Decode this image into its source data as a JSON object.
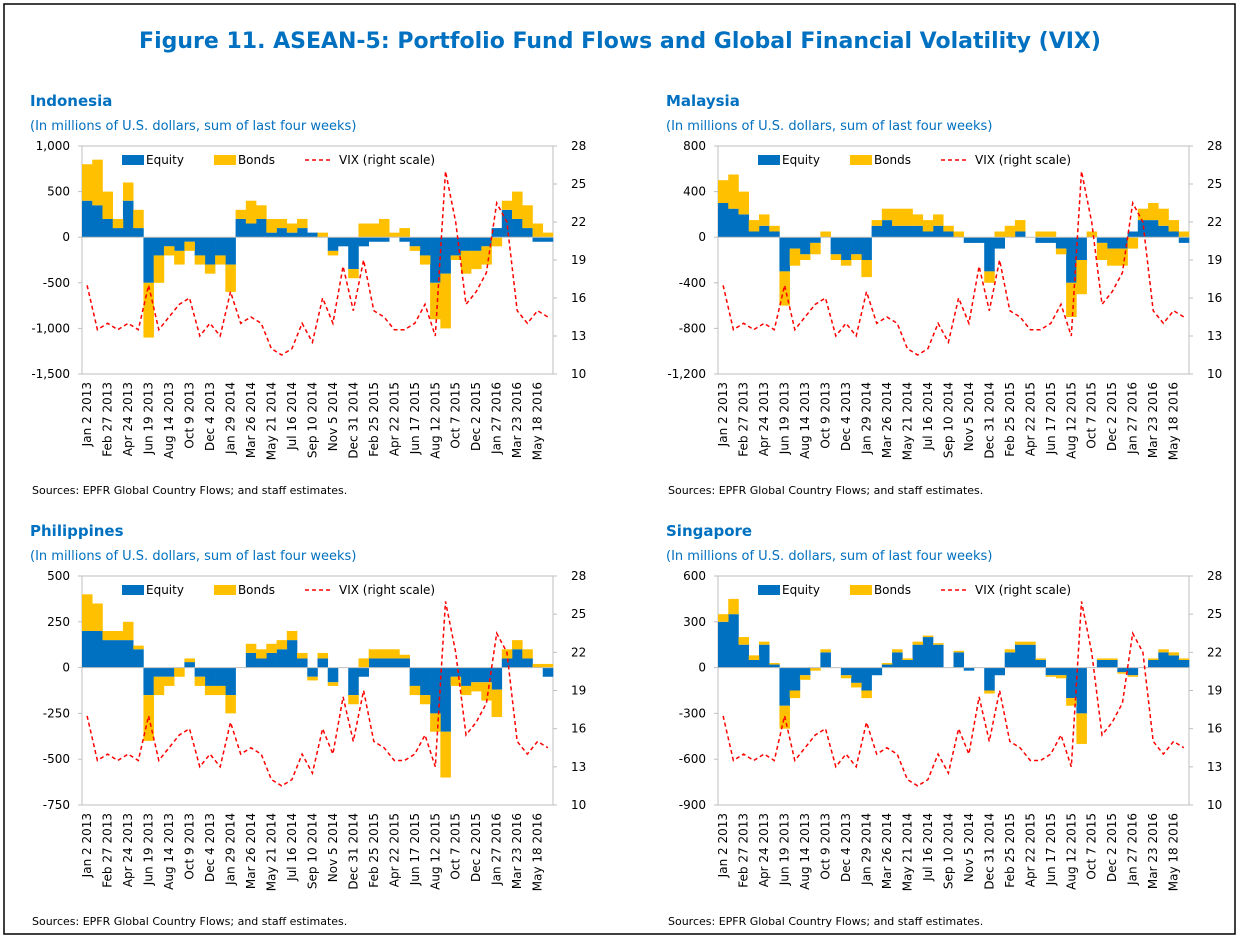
{
  "title": "Figure 11. ASEAN-5: Portfolio Fund Flows and Global Financial Volatility (VIX)",
  "chart_data": [
    {
      "type": "combo",
      "title": "Indonesia",
      "subtitle": "(In millions of U.S. dollars, sum of last four weeks)",
      "source": "Sources: EPFR Global Country Flows; and staff estimates.",
      "categories": [
        "Jan 2 2013",
        null,
        "Feb 27 2013",
        null,
        "Apr 24 2013",
        null,
        "Jun 19 2013",
        null,
        "Aug 14 2013",
        null,
        "Oct 9 2013",
        null,
        "Dec 4 2013",
        null,
        "Jan 29 2014",
        null,
        "Mar 26 2014",
        null,
        "May 21 2014",
        null,
        "Jul 16 2014",
        null,
        "Sep 10 2014",
        null,
        "Nov 5 2014",
        null,
        "Dec 31 2014",
        null,
        "Feb 25 2015",
        null,
        "Apr 22 2015",
        null,
        "Jun 17 2015",
        null,
        "Aug 12 2015",
        null,
        "Oct 7 2015",
        null,
        "Dec 2 2015",
        null,
        "Jan 27 2016",
        null,
        "Mar 23 2016",
        null,
        "May 18 2016",
        null
      ],
      "series": [
        {
          "name": "Equity",
          "color": "#0070c0",
          "values": [
            400,
            350,
            200,
            100,
            400,
            100,
            -500,
            -200,
            -100,
            -150,
            -50,
            -200,
            -300,
            -200,
            -300,
            200,
            150,
            200,
            50,
            100,
            50,
            100,
            50,
            0,
            -150,
            -100,
            -350,
            -100,
            -50,
            -50,
            0,
            -50,
            -100,
            -200,
            -500,
            -400,
            -200,
            -150,
            -150,
            -100,
            100,
            300,
            200,
            100,
            -50,
            -50
          ]
        },
        {
          "name": "Bonds",
          "color": "#ffc000",
          "values": [
            400,
            500,
            300,
            100,
            200,
            200,
            -600,
            -300,
            -100,
            -150,
            -100,
            -100,
            -100,
            -100,
            -300,
            100,
            250,
            150,
            150,
            100,
            100,
            100,
            0,
            50,
            -50,
            0,
            -100,
            150,
            150,
            200,
            50,
            100,
            -50,
            -100,
            -400,
            -600,
            -50,
            -250,
            -200,
            -200,
            -100,
            100,
            300,
            250,
            150,
            50
          ]
        },
        {
          "name": "VIX (right scale)",
          "color": "#ff0000",
          "axis": "y2",
          "values": [
            17,
            13.5,
            14,
            13.5,
            14,
            13.5,
            17,
            13.5,
            14.5,
            15.5,
            16,
            13,
            14,
            13,
            16.5,
            14,
            14.5,
            14,
            12,
            11.5,
            12,
            14,
            12.5,
            16,
            14,
            18.5,
            15,
            19,
            15,
            14.5,
            13.5,
            13.5,
            14,
            15.5,
            13,
            26,
            22,
            15.5,
            16.5,
            18,
            23.5,
            22,
            15,
            14,
            15,
            14.5
          ]
        }
      ],
      "ylim": [
        -1500,
        1000
      ],
      "yticks": [
        {
          "value": -1500,
          "label": "-1,500"
        },
        {
          "value": -1000,
          "label": "-1,000"
        },
        -500,
        0,
        500,
        {
          "value": 1000,
          "label": "1,000"
        }
      ],
      "y2lim": [
        10,
        28
      ],
      "y2ticks": [
        10,
        13,
        16,
        19,
        22,
        25,
        28
      ]
    },
    {
      "type": "combo",
      "title": "Malaysia",
      "subtitle": "(In millions of U.S. dollars, sum of last four weeks)",
      "source": "Sources: EPFR Global Country Flows; and staff estimates.",
      "categories": [
        "Jan 2 2013",
        null,
        "Feb 27 2013",
        null,
        "Apr 24 2013",
        null,
        "Jun 19 2013",
        null,
        "Aug 14 2013",
        null,
        "Oct 9 2013",
        null,
        "Dec 4 2013",
        null,
        "Jan 29 2014",
        null,
        "Mar 26 2014",
        null,
        "May 21 2014",
        null,
        "Jul 16 2014",
        null,
        "Sep 10 2014",
        null,
        "Nov 5 2014",
        null,
        "Dec 31 2014",
        null,
        "Feb 25 2015",
        null,
        "Apr 22 2015",
        null,
        "Jun 17 2015",
        null,
        "Aug 12 2015",
        null,
        "Oct 7 2015",
        null,
        "Dec 2 2015",
        null,
        "Jan 27 2016",
        null,
        "Mar 23 2016",
        null,
        "May 18 2016",
        null
      ],
      "series": [
        {
          "name": "Equity",
          "color": "#0070c0",
          "values": [
            300,
            250,
            200,
            50,
            100,
            50,
            -300,
            -100,
            -150,
            -50,
            0,
            -150,
            -200,
            -150,
            -200,
            100,
            150,
            100,
            100,
            100,
            50,
            100,
            50,
            0,
            -50,
            -50,
            -300,
            -100,
            0,
            50,
            0,
            -50,
            -50,
            -100,
            -400,
            -200,
            0,
            -50,
            -100,
            -100,
            50,
            150,
            150,
            100,
            50,
            -50
          ]
        },
        {
          "name": "Bonds",
          "color": "#ffc000",
          "values": [
            200,
            300,
            200,
            100,
            100,
            50,
            -300,
            -150,
            -50,
            -100,
            50,
            -50,
            -50,
            -50,
            -150,
            50,
            100,
            150,
            150,
            100,
            100,
            100,
            50,
            50,
            0,
            0,
            -100,
            50,
            100,
            100,
            0,
            50,
            50,
            -50,
            -300,
            -300,
            50,
            -150,
            -150,
            -150,
            -100,
            100,
            150,
            150,
            100,
            50
          ]
        },
        {
          "name": "VIX (right scale)",
          "color": "#ff0000",
          "axis": "y2",
          "values": [
            17,
            13.5,
            14,
            13.5,
            14,
            13.5,
            17,
            13.5,
            14.5,
            15.5,
            16,
            13,
            14,
            13,
            16.5,
            14,
            14.5,
            14,
            12,
            11.5,
            12,
            14,
            12.5,
            16,
            14,
            18.5,
            15,
            19,
            15,
            14.5,
            13.5,
            13.5,
            14,
            15.5,
            13,
            26,
            22,
            15.5,
            16.5,
            18,
            23.5,
            22,
            15,
            14,
            15,
            14.5
          ]
        }
      ],
      "ylim": [
        -1200,
        800
      ],
      "yticks": [
        {
          "value": -1200,
          "label": "-1,200"
        },
        -800,
        -400,
        0,
        400,
        800
      ],
      "y2lim": [
        10,
        28
      ],
      "y2ticks": [
        10,
        13,
        16,
        19,
        22,
        25,
        28
      ]
    },
    {
      "type": "combo",
      "title": "Philippines",
      "subtitle": "(In millions of U.S. dollars, sum of last four weeks)",
      "source": "Sources: EPFR Global Country Flows; and staff estimates.",
      "categories": [
        "Jan 2 2013",
        null,
        "Feb 27 2013",
        null,
        "Apr 24 2013",
        null,
        "Jun 19 2013",
        null,
        "Aug 14 2013",
        null,
        "Oct 9 2013",
        null,
        "Dec 4 2013",
        null,
        "Jan 29 2014",
        null,
        "Mar 26 2014",
        null,
        "May 21 2014",
        null,
        "Jul 16 2014",
        null,
        "Sep 10 2014",
        null,
        "Nov 5 2014",
        null,
        "Dec 31 2014",
        null,
        "Feb 25 2015",
        null,
        "Apr 22 2015",
        null,
        "Jun 17 2015",
        null,
        "Aug 12 2015",
        null,
        "Oct 7 2015",
        null,
        "Dec 2 2015",
        null,
        "Jan 27 2016",
        null,
        "Mar 23 2016",
        null,
        "May 18 2016",
        null
      ],
      "series": [
        {
          "name": "Equity",
          "color": "#0070c0",
          "values": [
            200,
            200,
            150,
            150,
            150,
            100,
            -150,
            -50,
            -50,
            0,
            30,
            -50,
            -100,
            -100,
            -150,
            0,
            80,
            50,
            80,
            100,
            150,
            50,
            -50,
            50,
            -80,
            0,
            -150,
            -50,
            50,
            50,
            50,
            50,
            -100,
            -150,
            -250,
            -350,
            -50,
            -100,
            -80,
            -80,
            -120,
            50,
            100,
            50,
            0,
            -50
          ]
        },
        {
          "name": "Bonds",
          "color": "#ffc000",
          "values": [
            200,
            150,
            50,
            50,
            100,
            20,
            -250,
            -100,
            -50,
            -50,
            20,
            -50,
            -50,
            -50,
            -100,
            0,
            50,
            50,
            50,
            50,
            50,
            30,
            -20,
            30,
            -20,
            0,
            -50,
            50,
            50,
            50,
            50,
            20,
            -50,
            -50,
            -100,
            -250,
            -50,
            -50,
            -50,
            -100,
            -150,
            50,
            50,
            50,
            20,
            20
          ]
        },
        {
          "name": "VIX (right scale)",
          "color": "#ff0000",
          "axis": "y2",
          "values": [
            17,
            13.5,
            14,
            13.5,
            14,
            13.5,
            17,
            13.5,
            14.5,
            15.5,
            16,
            13,
            14,
            13,
            16.5,
            14,
            14.5,
            14,
            12,
            11.5,
            12,
            14,
            12.5,
            16,
            14,
            18.5,
            15,
            19,
            15,
            14.5,
            13.5,
            13.5,
            14,
            15.5,
            13,
            26,
            22,
            15.5,
            16.5,
            18,
            23.5,
            22,
            15,
            14,
            15,
            14.5
          ]
        }
      ],
      "ylim": [
        -750,
        500
      ],
      "yticks": [
        -750,
        -500,
        -250,
        0,
        250,
        500
      ],
      "y2lim": [
        10,
        28
      ],
      "y2ticks": [
        10,
        13,
        16,
        19,
        22,
        25,
        28
      ]
    },
    {
      "type": "combo",
      "title": "Singapore",
      "subtitle": "(In millions of U.S. dollars, sum of last four weeks)",
      "source": "Sources: EPFR Global Country Flows; and staff estimates.",
      "categories": [
        "Jan 2 2013",
        null,
        "Feb 27 2013",
        null,
        "Apr 24 2013",
        null,
        "Jun 19 2013",
        null,
        "Aug 14 2013",
        null,
        "Oct 9 2013",
        null,
        "Dec 4 2013",
        null,
        "Jan 29 2014",
        null,
        "Mar 26 2014",
        null,
        "May 21 2014",
        null,
        "Jul 16 2014",
        null,
        "Sep 10 2014",
        null,
        "Nov 5 2014",
        null,
        "Dec 31 2014",
        null,
        "Feb 25 2015",
        null,
        "Apr 22 2015",
        null,
        "Jun 17 2015",
        null,
        "Aug 12 2015",
        null,
        "Oct 7 2015",
        null,
        "Dec 2 2015",
        null,
        "Jan 27 2016",
        null,
        "Mar 23 2016",
        null,
        "May 18 2016",
        null
      ],
      "series": [
        {
          "name": "Equity",
          "color": "#0070c0",
          "values": [
            300,
            350,
            150,
            50,
            150,
            20,
            -250,
            -150,
            -50,
            0,
            100,
            0,
            -50,
            -100,
            -150,
            -50,
            20,
            100,
            50,
            150,
            200,
            150,
            0,
            100,
            -20,
            0,
            -150,
            -50,
            100,
            150,
            150,
            50,
            -50,
            -50,
            -200,
            -300,
            0,
            50,
            50,
            -30,
            -50,
            0,
            50,
            100,
            80,
            50
          ]
        },
        {
          "name": "Bonds",
          "color": "#ffc000",
          "values": [
            50,
            100,
            50,
            30,
            20,
            10,
            -150,
            -50,
            -30,
            -20,
            20,
            0,
            -20,
            -30,
            -50,
            0,
            10,
            20,
            10,
            20,
            10,
            10,
            0,
            10,
            0,
            0,
            -20,
            0,
            20,
            20,
            20,
            10,
            -10,
            -20,
            -50,
            -200,
            0,
            10,
            10,
            -10,
            -10,
            0,
            10,
            20,
            20,
            10
          ]
        },
        {
          "name": "VIX (right scale)",
          "color": "#ff0000",
          "axis": "y2",
          "values": [
            17,
            13.5,
            14,
            13.5,
            14,
            13.5,
            17,
            13.5,
            14.5,
            15.5,
            16,
            13,
            14,
            13,
            16.5,
            14,
            14.5,
            14,
            12,
            11.5,
            12,
            14,
            12.5,
            16,
            14,
            18.5,
            15,
            19,
            15,
            14.5,
            13.5,
            13.5,
            14,
            15.5,
            13,
            26,
            22,
            15.5,
            16.5,
            18,
            23.5,
            22,
            15,
            14,
            15,
            14.5
          ]
        }
      ],
      "ylim": [
        -900,
        600
      ],
      "yticks": [
        -900,
        -600,
        -300,
        0,
        300,
        600
      ],
      "y2lim": [
        10,
        28
      ],
      "y2ticks": [
        10,
        13,
        16,
        19,
        22,
        25,
        28
      ]
    }
  ]
}
